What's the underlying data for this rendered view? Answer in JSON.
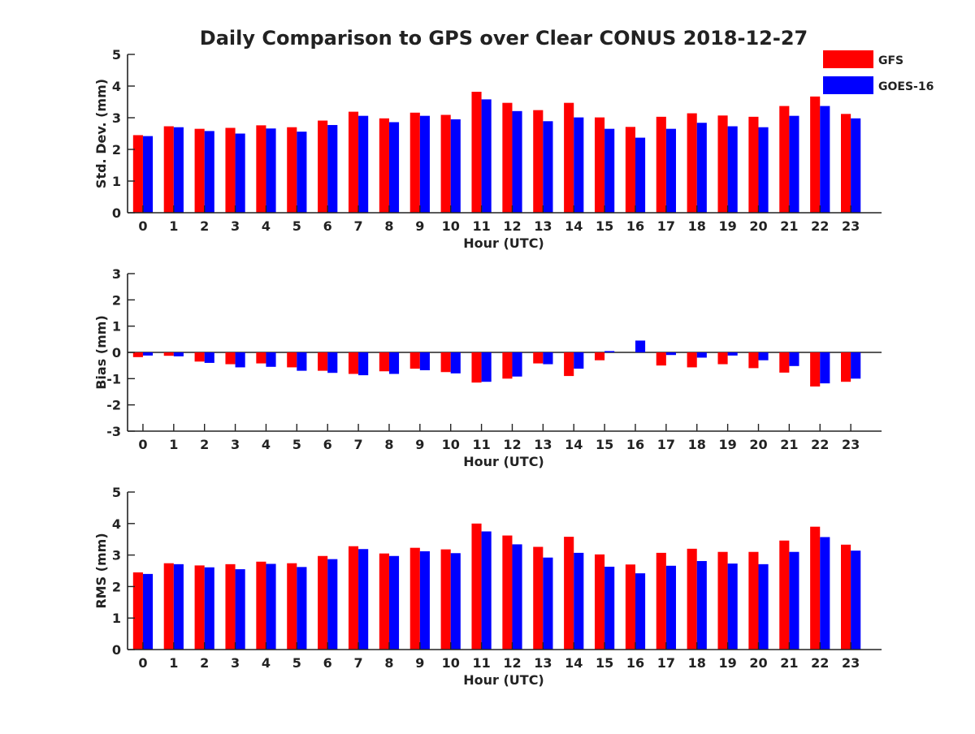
{
  "title": "Daily Comparison to GPS over Clear CONUS 2018-12-27",
  "legend": [
    {
      "name": "GFS",
      "color": "#ff0000"
    },
    {
      "name": "GOES-16",
      "color": "#0000ff"
    }
  ],
  "chart_data": [
    {
      "id": "stddev",
      "type": "bar",
      "title": "Daily Comparison to GPS over Clear CONUS 2018-12-27",
      "xlabel": "Hour (UTC)",
      "ylabel": "Std. Dev. (mm)",
      "ylim": [
        0,
        5
      ],
      "yticks": [
        0,
        1,
        2,
        3,
        4,
        5
      ],
      "categories": [
        "0",
        "1",
        "2",
        "3",
        "4",
        "5",
        "6",
        "7",
        "8",
        "9",
        "10",
        "11",
        "12",
        "13",
        "14",
        "15",
        "16",
        "17",
        "18",
        "19",
        "20",
        "21",
        "22",
        "23"
      ],
      "series": [
        {
          "name": "GFS",
          "color": "#ff0000",
          "values": [
            2.45,
            2.73,
            2.65,
            2.68,
            2.76,
            2.7,
            2.91,
            3.19,
            2.98,
            3.16,
            3.09,
            3.82,
            3.47,
            3.24,
            3.47,
            3.01,
            2.71,
            3.03,
            3.14,
            3.07,
            3.03,
            3.37,
            3.67,
            3.12
          ]
        },
        {
          "name": "GOES-16",
          "color": "#0000ff",
          "values": [
            2.42,
            2.7,
            2.58,
            2.5,
            2.66,
            2.56,
            2.77,
            3.06,
            2.86,
            3.06,
            2.95,
            3.58,
            3.21,
            2.89,
            3.01,
            2.65,
            2.37,
            2.65,
            2.84,
            2.73,
            2.7,
            3.06,
            3.37,
            2.98
          ]
        }
      ]
    },
    {
      "id": "bias",
      "type": "bar",
      "title": "",
      "xlabel": "Hour (UTC)",
      "ylabel": "Bias (mm)",
      "ylim": [
        -3,
        3
      ],
      "yticks": [
        -3,
        -2,
        -1,
        0,
        1,
        2,
        3
      ],
      "categories": [
        "0",
        "1",
        "2",
        "3",
        "4",
        "5",
        "6",
        "7",
        "8",
        "9",
        "10",
        "11",
        "12",
        "13",
        "14",
        "15",
        "16",
        "17",
        "18",
        "19",
        "20",
        "21",
        "22",
        "23"
      ],
      "series": [
        {
          "name": "GFS",
          "color": "#ff0000",
          "values": [
            -0.18,
            -0.13,
            -0.35,
            -0.45,
            -0.42,
            -0.57,
            -0.7,
            -0.82,
            -0.72,
            -0.62,
            -0.75,
            -1.15,
            -1.0,
            -0.42,
            -0.9,
            -0.3,
            0.0,
            -0.5,
            -0.57,
            -0.45,
            -0.6,
            -0.77,
            -1.3,
            -1.12
          ]
        },
        {
          "name": "GOES-16",
          "color": "#0000ff",
          "values": [
            -0.12,
            -0.15,
            -0.4,
            -0.57,
            -0.55,
            -0.7,
            -0.78,
            -0.87,
            -0.82,
            -0.68,
            -0.8,
            -1.12,
            -0.92,
            -0.45,
            -0.62,
            0.05,
            0.45,
            -0.1,
            -0.2,
            -0.12,
            -0.3,
            -0.52,
            -1.18,
            -1.0
          ]
        }
      ]
    },
    {
      "id": "rms",
      "type": "bar",
      "title": "",
      "xlabel": "Hour (UTC)",
      "ylabel": "RMS (mm)",
      "ylim": [
        0,
        5
      ],
      "yticks": [
        0,
        1,
        2,
        3,
        4,
        5
      ],
      "categories": [
        "0",
        "1",
        "2",
        "3",
        "4",
        "5",
        "6",
        "7",
        "8",
        "9",
        "10",
        "11",
        "12",
        "13",
        "14",
        "15",
        "16",
        "17",
        "18",
        "19",
        "20",
        "21",
        "22",
        "23"
      ],
      "series": [
        {
          "name": "GFS",
          "color": "#ff0000",
          "values": [
            2.45,
            2.74,
            2.67,
            2.71,
            2.79,
            2.74,
            2.97,
            3.28,
            3.05,
            3.23,
            3.18,
            4.0,
            3.62,
            3.26,
            3.58,
            3.02,
            2.7,
            3.07,
            3.2,
            3.1,
            3.1,
            3.46,
            3.9,
            3.33
          ]
        },
        {
          "name": "GOES-16",
          "color": "#0000ff",
          "values": [
            2.4,
            2.71,
            2.61,
            2.55,
            2.72,
            2.62,
            2.87,
            3.19,
            2.97,
            3.12,
            3.06,
            3.75,
            3.34,
            2.92,
            3.07,
            2.63,
            2.42,
            2.66,
            2.81,
            2.73,
            2.71,
            3.1,
            3.57,
            3.14
          ]
        }
      ]
    }
  ]
}
